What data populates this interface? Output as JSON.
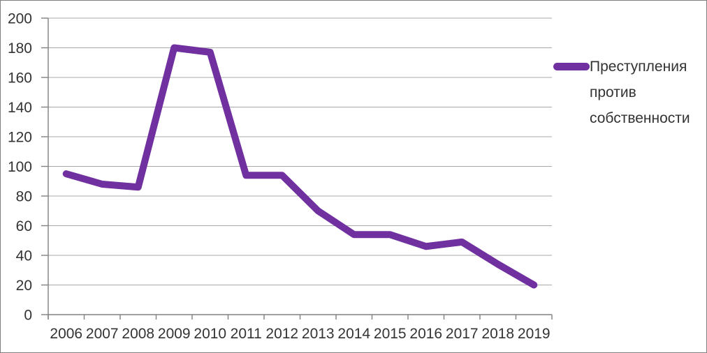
{
  "chart_data": {
    "type": "line",
    "title": "",
    "xlabel": "",
    "ylabel": "",
    "categories": [
      "2006",
      "2007",
      "2008",
      "2009",
      "2010",
      "2011",
      "2012",
      "2013",
      "2014",
      "2015",
      "2016",
      "2017",
      "2018",
      "2019"
    ],
    "series": [
      {
        "name": "Преступления против собственности",
        "values": [
          95,
          88,
          86,
          180,
          177,
          94,
          94,
          70,
          54,
          54,
          46,
          49,
          34,
          20
        ],
        "color": "#7030A0"
      }
    ],
    "ylim": [
      0,
      200
    ],
    "yticks": [
      0,
      20,
      40,
      60,
      80,
      100,
      120,
      140,
      160,
      180,
      200
    ],
    "grid": true,
    "legend_position": "right"
  },
  "colors": {
    "line": "#7030A0",
    "grid": "#A8A8A8",
    "axis": "#808080",
    "text": "#333333",
    "border": "#7F7F7F",
    "background": "#FFFFFF"
  }
}
